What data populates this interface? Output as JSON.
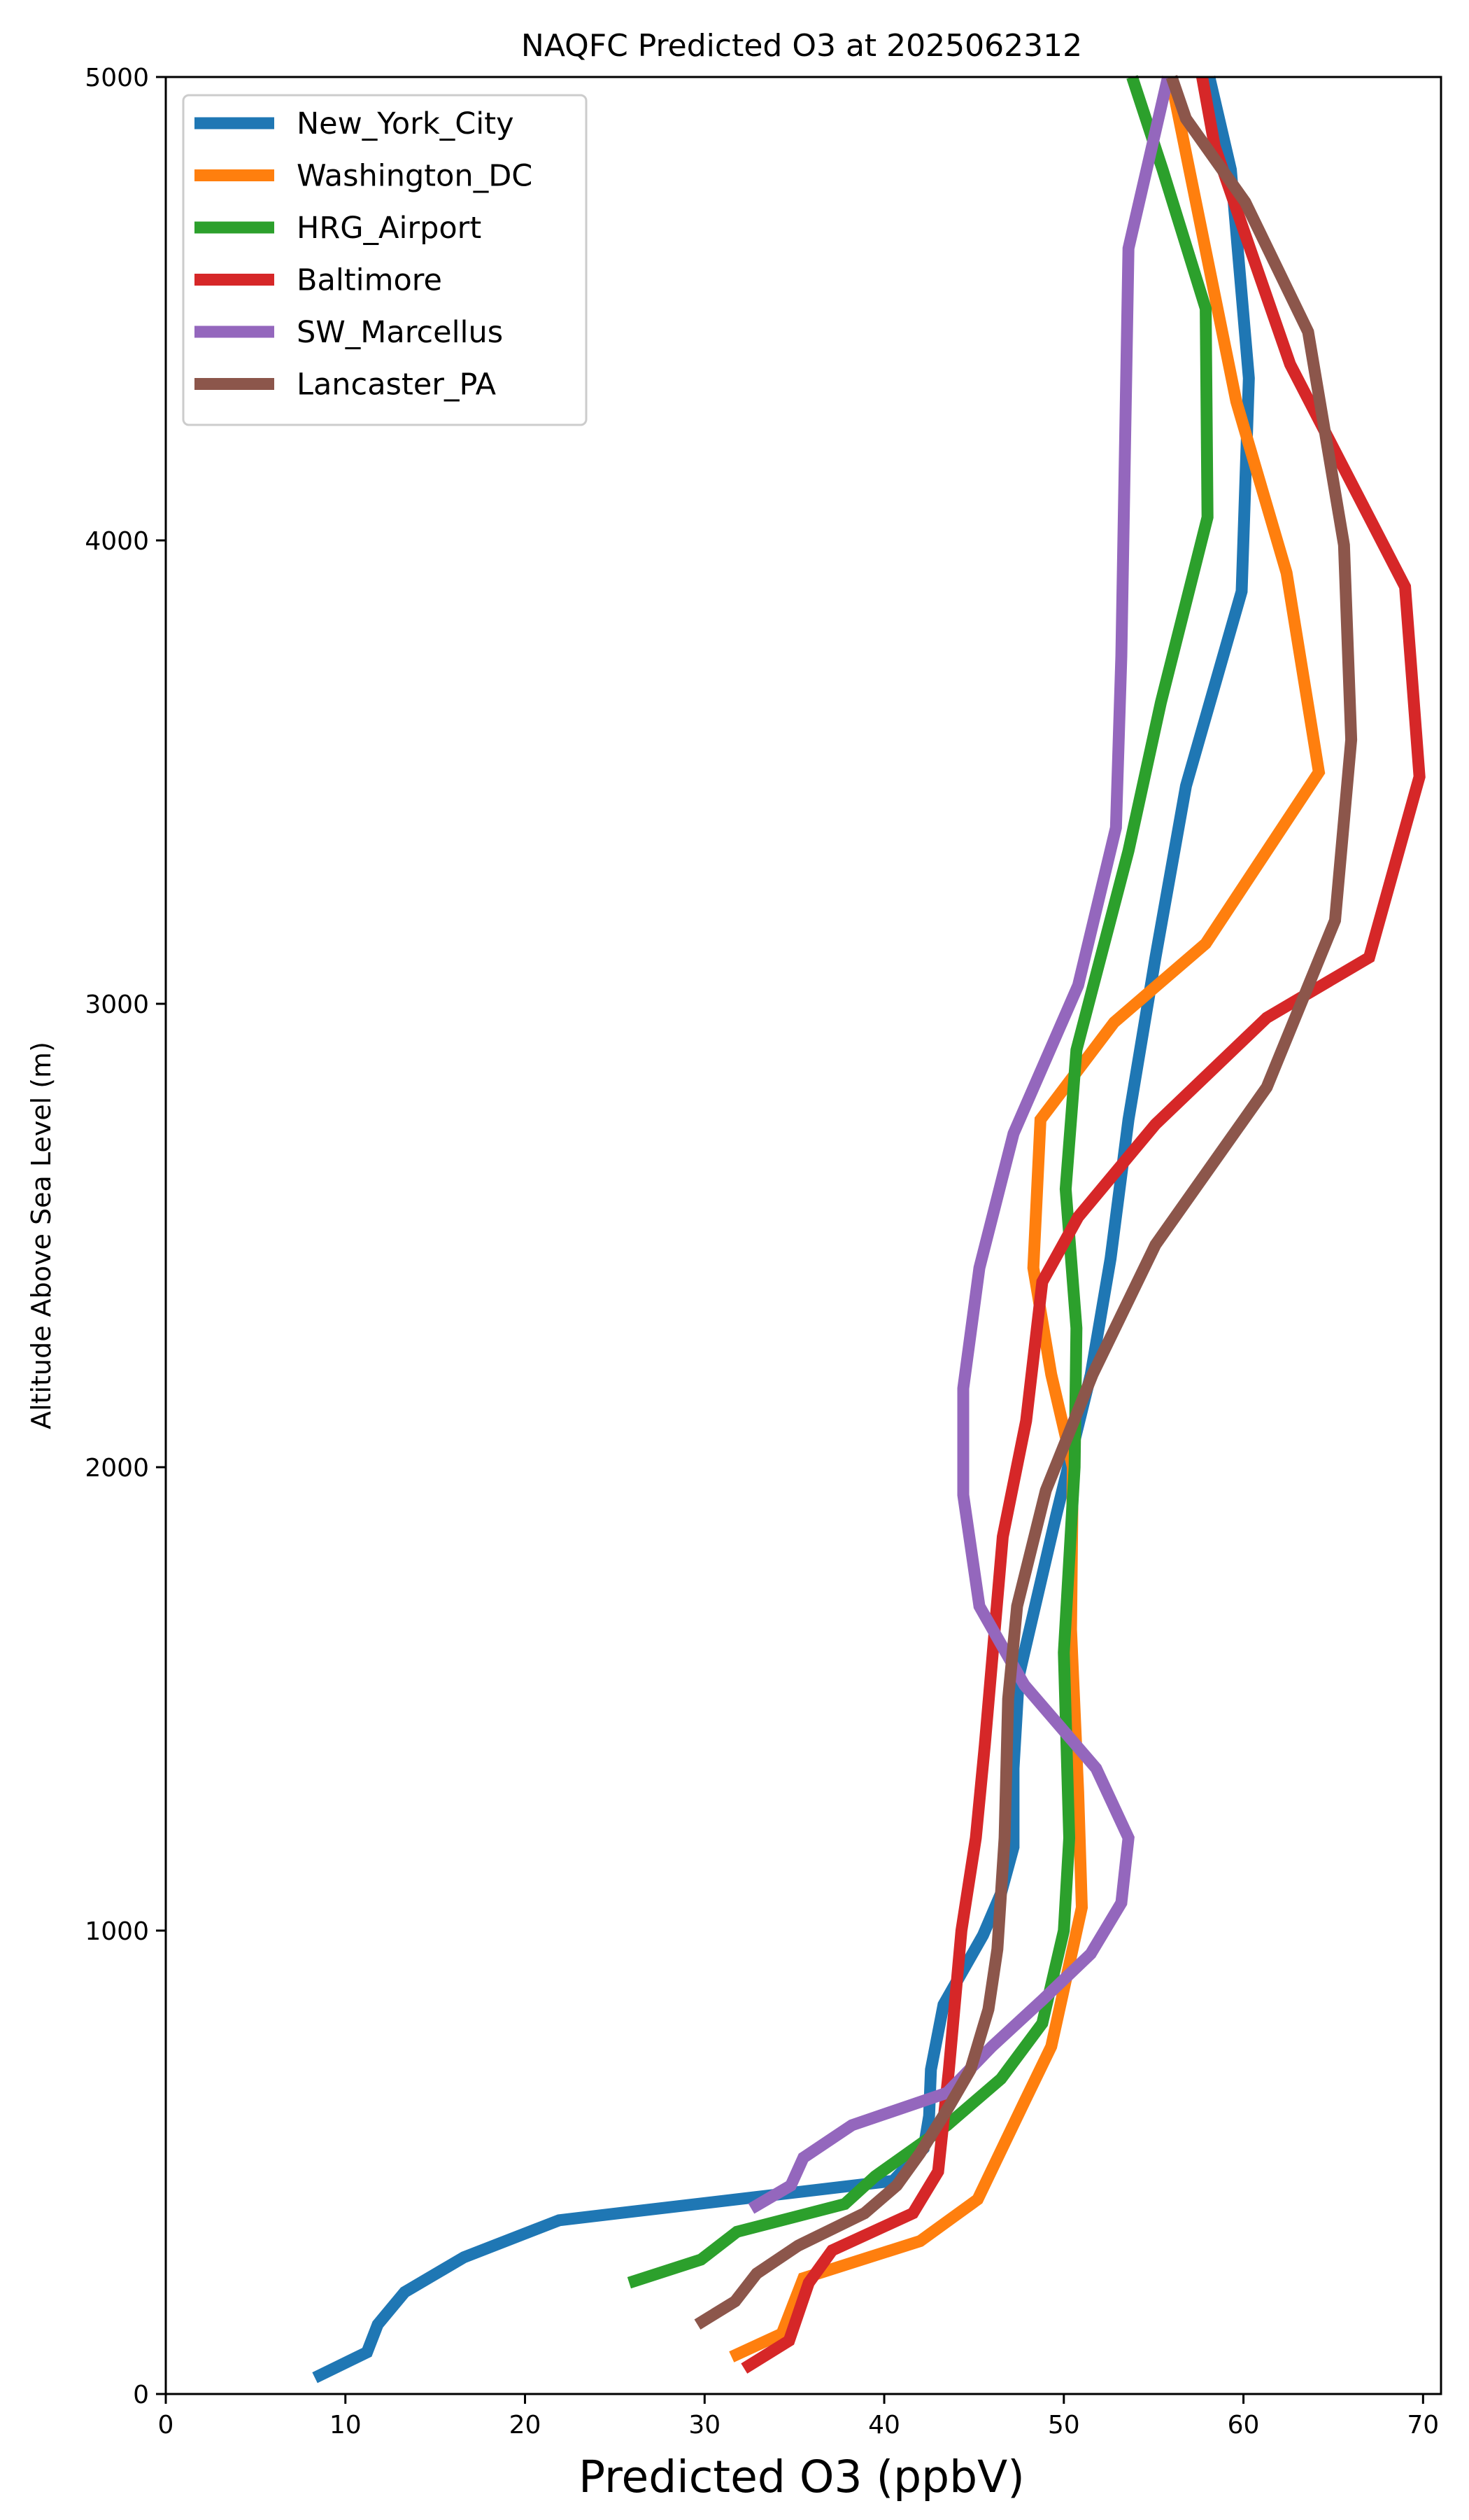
{
  "chart_data": {
    "type": "line",
    "title": "NAQFC Predicted O3 at 2025062312",
    "xlabel": "Predicted O3 (ppbV)",
    "ylabel": "Altitude Above Sea Level (m)",
    "xlim": [
      0,
      71
    ],
    "ylim": [
      0,
      5000
    ],
    "xticks": [
      0,
      10,
      20,
      30,
      40,
      50,
      60,
      70
    ],
    "yticks": [
      0,
      1000,
      2000,
      3000,
      4000,
      5000
    ],
    "grid": false,
    "legend_position": "upper-left",
    "series": [
      {
        "name": "New_York_City",
        "color": "#1f77b4",
        "points": [
          [
            8.3,
            35
          ],
          [
            11.2,
            90
          ],
          [
            11.8,
            150
          ],
          [
            13.3,
            220
          ],
          [
            16.6,
            295
          ],
          [
            21.9,
            375
          ],
          [
            40.5,
            460
          ],
          [
            42.2,
            530
          ],
          [
            42.5,
            600
          ],
          [
            42.6,
            700
          ],
          [
            43.3,
            840
          ],
          [
            45.5,
            990
          ],
          [
            46.5,
            1080
          ],
          [
            47.2,
            1180
          ],
          [
            47.2,
            1350
          ],
          [
            47.5,
            1550
          ],
          [
            49.6,
            1900
          ],
          [
            51.5,
            2200
          ],
          [
            52.6,
            2450
          ],
          [
            53.6,
            2750
          ],
          [
            55.1,
            3100
          ],
          [
            56.8,
            3470
          ],
          [
            59.9,
            3890
          ],
          [
            60.3,
            4350
          ],
          [
            59.3,
            4800
          ],
          [
            58.1,
            5000
          ]
        ]
      },
      {
        "name": "Washington_DC",
        "color": "#ff7f0e",
        "points": [
          [
            31.5,
            80
          ],
          [
            34.3,
            130
          ],
          [
            35.5,
            250
          ],
          [
            42.0,
            330
          ],
          [
            45.2,
            420
          ],
          [
            47.8,
            630
          ],
          [
            49.3,
            750
          ],
          [
            51.0,
            1050
          ],
          [
            50.8,
            1300
          ],
          [
            50.4,
            1650
          ],
          [
            50.5,
            2000
          ],
          [
            49.3,
            2200
          ],
          [
            48.3,
            2430
          ],
          [
            48.7,
            2750
          ],
          [
            52.8,
            2960
          ],
          [
            57.9,
            3130
          ],
          [
            64.2,
            3500
          ],
          [
            62.4,
            3930
          ],
          [
            59.6,
            4300
          ],
          [
            56.1,
            4970
          ]
        ]
      },
      {
        "name": "HRG_Airport",
        "color": "#2ca02c",
        "points": [
          [
            25.8,
            240
          ],
          [
            29.8,
            290
          ],
          [
            31.8,
            350
          ],
          [
            37.8,
            410
          ],
          [
            39.5,
            470
          ],
          [
            43.5,
            580
          ],
          [
            46.5,
            680
          ],
          [
            48.8,
            800
          ],
          [
            50.0,
            1000
          ],
          [
            50.3,
            1200
          ],
          [
            50.0,
            1600
          ],
          [
            50.6,
            2000
          ],
          [
            50.7,
            2300
          ],
          [
            50.1,
            2600
          ],
          [
            50.7,
            2900
          ],
          [
            53.6,
            3330
          ],
          [
            55.4,
            3650
          ],
          [
            58.0,
            4050
          ],
          [
            57.9,
            4500
          ],
          [
            55.5,
            4800
          ],
          [
            53.8,
            5000
          ]
        ]
      },
      {
        "name": "Baltimore",
        "color": "#d62728",
        "points": [
          [
            32.2,
            55
          ],
          [
            34.7,
            115
          ],
          [
            35.8,
            240
          ],
          [
            37.1,
            310
          ],
          [
            41.6,
            390
          ],
          [
            43.0,
            480
          ],
          [
            43.6,
            700
          ],
          [
            44.3,
            1000
          ],
          [
            45.1,
            1200
          ],
          [
            45.6,
            1400
          ],
          [
            46.6,
            1850
          ],
          [
            47.9,
            2100
          ],
          [
            48.8,
            2400
          ],
          [
            50.8,
            2540
          ],
          [
            55.1,
            2740
          ],
          [
            61.3,
            2970
          ],
          [
            67.0,
            3100
          ],
          [
            69.8,
            3490
          ],
          [
            69.0,
            3900
          ],
          [
            62.6,
            4380
          ],
          [
            58.4,
            4850
          ],
          [
            57.7,
            5000
          ]
        ]
      },
      {
        "name": "SW_Marcellus",
        "color": "#9467bd",
        "points": [
          [
            32.6,
            400
          ],
          [
            34.8,
            450
          ],
          [
            35.5,
            510
          ],
          [
            38.2,
            580
          ],
          [
            43.5,
            650
          ],
          [
            46.0,
            750
          ],
          [
            48.8,
            850
          ],
          [
            51.5,
            950
          ],
          [
            53.2,
            1060
          ],
          [
            53.6,
            1200
          ],
          [
            51.8,
            1350
          ],
          [
            47.8,
            1530
          ],
          [
            45.3,
            1700
          ],
          [
            44.4,
            1940
          ],
          [
            44.4,
            2170
          ],
          [
            45.3,
            2430
          ],
          [
            47.2,
            2720
          ],
          [
            50.8,
            3040
          ],
          [
            52.9,
            3380
          ],
          [
            53.2,
            3750
          ],
          [
            53.6,
            4630
          ],
          [
            55.8,
            5000
          ]
        ]
      },
      {
        "name": "Lancaster_PA",
        "color": "#8c564b",
        "points": [
          [
            29.6,
            150
          ],
          [
            31.7,
            200
          ],
          [
            32.9,
            260
          ],
          [
            35.2,
            320
          ],
          [
            38.9,
            390
          ],
          [
            40.7,
            450
          ],
          [
            42.0,
            520
          ],
          [
            43.6,
            620
          ],
          [
            44.8,
            700
          ],
          [
            45.8,
            830
          ],
          [
            46.3,
            960
          ],
          [
            46.7,
            1200
          ],
          [
            46.9,
            1500
          ],
          [
            47.4,
            1700
          ],
          [
            49.0,
            1950
          ],
          [
            51.6,
            2200
          ],
          [
            55.1,
            2480
          ],
          [
            61.3,
            2820
          ],
          [
            65.1,
            3180
          ],
          [
            66.0,
            3570
          ],
          [
            65.6,
            3990
          ],
          [
            63.6,
            4450
          ],
          [
            60.1,
            4730
          ],
          [
            56.8,
            4910
          ],
          [
            56.0,
            5000
          ]
        ]
      }
    ]
  }
}
